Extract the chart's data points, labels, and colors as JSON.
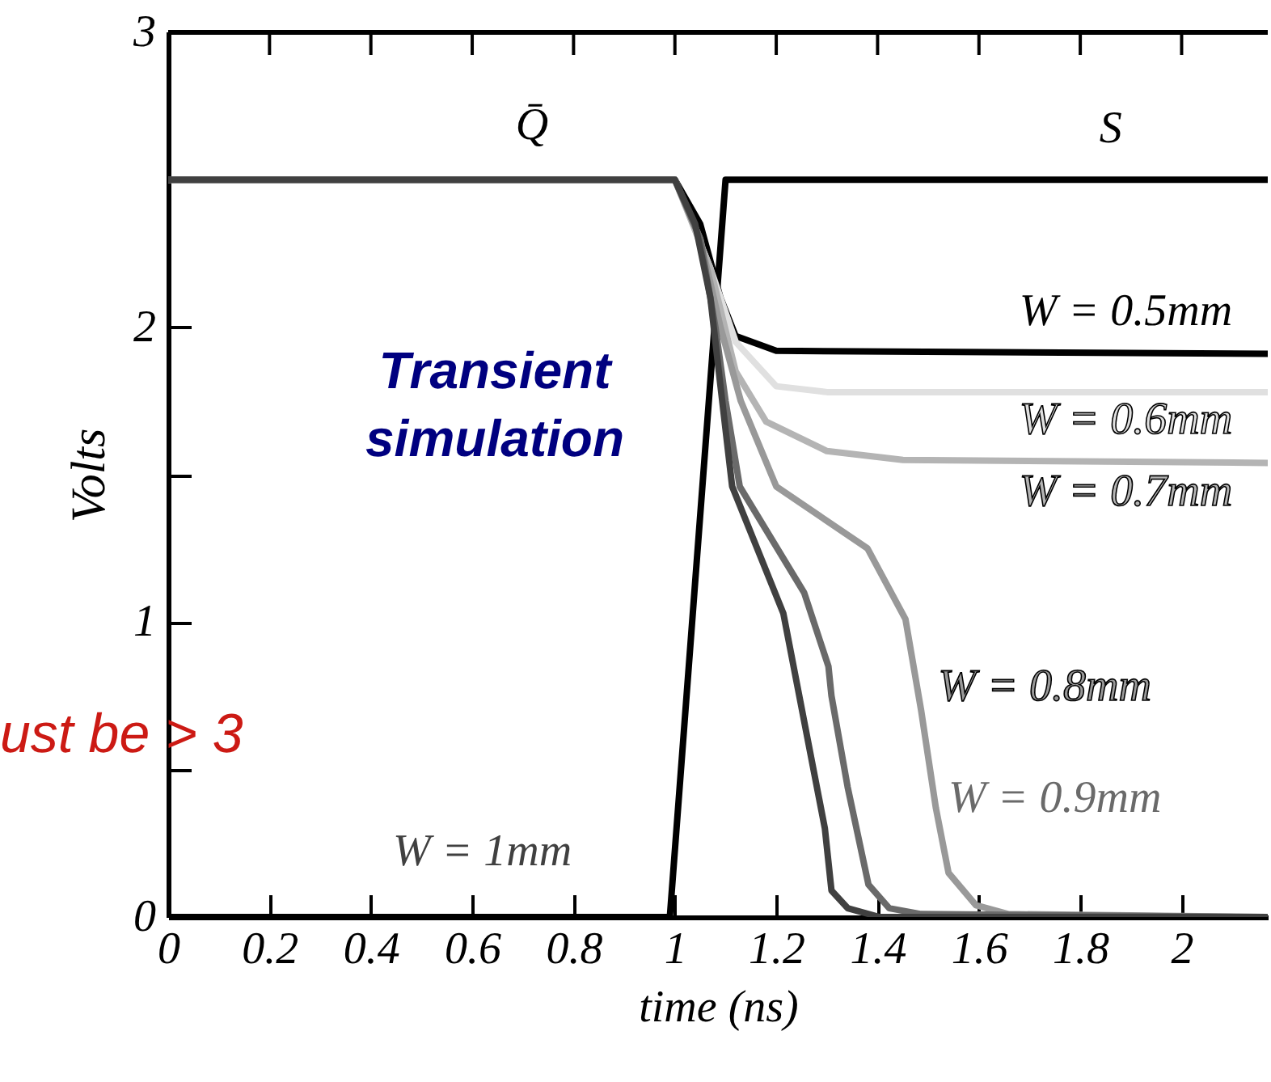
{
  "chart_data": {
    "type": "line",
    "xlabel": "time (ns)",
    "ylabel": "Volts",
    "xlim": [
      0,
      2.17
    ],
    "ylim": [
      0,
      3
    ],
    "xticks": [
      0,
      0.2,
      0.4,
      0.6,
      0.8,
      1,
      1.2,
      1.4,
      1.6,
      1.8,
      2
    ],
    "yticks": [
      0,
      {
        "value": 0.5,
        "label": null
      },
      1,
      {
        "value": 1.5,
        "label": null
      },
      2,
      {
        "value": 2.5,
        "label": null
      },
      3
    ],
    "grid": false,
    "line_style": "solid",
    "marker": "none",
    "series": [
      {
        "name": "S",
        "color": "#000000",
        "x": [
          0,
          0.99,
          1.1,
          2.17
        ],
        "values": [
          0,
          0,
          2.5,
          2.5
        ]
      },
      {
        "name": "W = 0.5mm",
        "color": "#000000",
        "x": [
          0,
          1.0,
          1.05,
          1.09,
          1.12,
          1.2,
          2.17
        ],
        "values": [
          2.5,
          2.5,
          2.35,
          2.1,
          1.97,
          1.92,
          1.91
        ]
      },
      {
        "name": "W = 0.6mm",
        "color": "#e0e0e0",
        "x": [
          0,
          1.0,
          1.07,
          1.12,
          1.2,
          1.3,
          2.17
        ],
        "values": [
          2.5,
          2.5,
          2.2,
          1.95,
          1.8,
          1.78,
          1.78
        ]
      },
      {
        "name": "W = 0.7mm",
        "color": "#b4b4b4",
        "x": [
          0,
          1.0,
          1.07,
          1.12,
          1.18,
          1.3,
          1.45,
          2.17
        ],
        "values": [
          2.5,
          2.5,
          2.2,
          1.85,
          1.68,
          1.58,
          1.55,
          1.54
        ]
      },
      {
        "name": "W = 0.8mm",
        "color": "#999999",
        "x": [
          0,
          1.0,
          1.05,
          1.09,
          1.13,
          1.2,
          1.38,
          1.455,
          1.486,
          1.515,
          1.54,
          1.594,
          1.658,
          2.17
        ],
        "values": [
          2.5,
          2.5,
          2.3,
          2.0,
          1.75,
          1.46,
          1.25,
          1.01,
          0.7,
          0.37,
          0.15,
          0.04,
          0.01,
          0
        ]
      },
      {
        "name": "W = 0.9mm",
        "color": "#6a6a6a",
        "x": [
          0,
          1.0,
          1.05,
          1.08,
          1.1,
          1.128,
          1.255,
          1.303,
          1.309,
          1.341,
          1.382,
          1.423,
          1.486,
          2.17
        ],
        "values": [
          2.5,
          2.5,
          2.3,
          2.0,
          1.75,
          1.46,
          1.1,
          0.85,
          0.75,
          0.44,
          0.11,
          0.03,
          0.01,
          0
        ]
      },
      {
        "name": "W = 1mm",
        "color": "#404040",
        "x": [
          0,
          1.0,
          1.04,
          1.07,
          1.09,
          1.113,
          1.214,
          1.296,
          1.309,
          1.341,
          1.404,
          2.17
        ],
        "values": [
          2.5,
          2.5,
          2.35,
          2.1,
          1.8,
          1.46,
          1.03,
          0.3,
          0.09,
          0.03,
          0,
          0
        ]
      }
    ],
    "annotations": [
      "Q̄",
      "Transient\nsimulation",
      "ust be > 3"
    ]
  }
}
